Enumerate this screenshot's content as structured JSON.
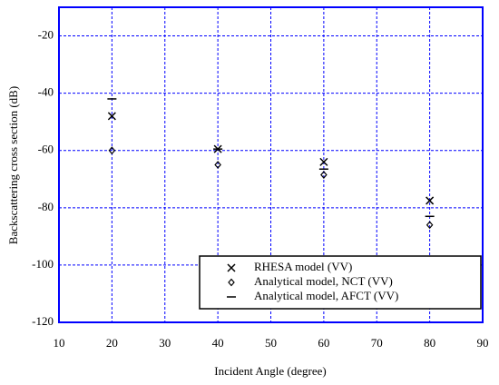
{
  "chart_data": {
    "type": "scatter",
    "x_label": "Incident Angle (degree)",
    "y_label": "Backscattering cross section (dB)",
    "xlim": [
      10,
      90
    ],
    "xticks": [
      10,
      20,
      30,
      40,
      50,
      60,
      70,
      80,
      90
    ],
    "ylim": [
      -120,
      -10
    ],
    "yticks": [
      -120,
      -100,
      -80,
      -60,
      -40,
      -20
    ],
    "grid": true,
    "legend_position": "lower right",
    "series": [
      {
        "name": "RHESA model (VV)",
        "marker": "x",
        "color": "#000000",
        "x": [
          20,
          40,
          60,
          80
        ],
        "values": [
          -48,
          -59.5,
          -64,
          -77.5
        ]
      },
      {
        "name": "Analytical model, NCT (VV)",
        "marker": "diamond",
        "color": "#000000",
        "x": [
          20,
          40,
          60,
          80
        ],
        "values": [
          -60,
          -65,
          -68.5,
          -86
        ]
      },
      {
        "name": "Analytical model, AFCT (VV)",
        "marker": "dash",
        "color": "#000000",
        "x": [
          20,
          40,
          60,
          80
        ],
        "values": [
          -42,
          -59.5,
          -66.5,
          -83
        ]
      }
    ]
  }
}
